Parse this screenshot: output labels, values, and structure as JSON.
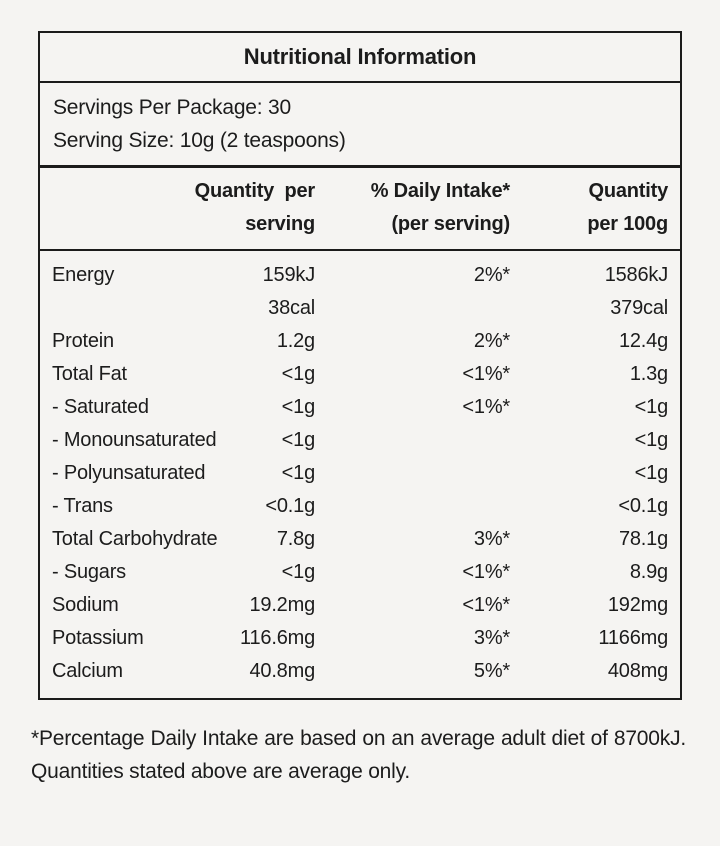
{
  "page": {
    "background_color": "#f5f4f2",
    "border_color": "#1b1b1b",
    "text_color": "#1c1c1c"
  },
  "table": {
    "title": "Nutritional Information",
    "servings": {
      "per_package": "Servings Per Package: 30",
      "serving_size": "Serving Size: 10g (2 teaspoons)"
    },
    "columns": {
      "qty_serving": "Quantity per\nserving",
      "daily_intake": "% Daily Intake*\n(per serving)",
      "qty_100g": "Quantity\nper 100g"
    },
    "rows": [
      {
        "label": "Energy",
        "qty_serving": "159kJ\n38cal",
        "daily_intake": "2%*",
        "qty_100g": "1586kJ\n379cal"
      },
      {
        "label": "Protein",
        "qty_serving": "1.2g",
        "daily_intake": "2%*",
        "qty_100g": "12.4g"
      },
      {
        "label": "Total Fat",
        "qty_serving": "<1g",
        "daily_intake": "<1%*",
        "qty_100g": "1.3g"
      },
      {
        "label": "- Saturated",
        "qty_serving": "<1g",
        "daily_intake": "<1%*",
        "qty_100g": "<1g"
      },
      {
        "label": "- Monounsaturated",
        "qty_serving": "<1g",
        "daily_intake": "",
        "qty_100g": "<1g"
      },
      {
        "label": "- Polyunsaturated",
        "qty_serving": "<1g",
        "daily_intake": "",
        "qty_100g": "<1g"
      },
      {
        "label": "- Trans",
        "qty_serving": "<0.1g",
        "daily_intake": "",
        "qty_100g": "<0.1g"
      },
      {
        "label": "Total Carbohydrate",
        "qty_serving": "7.8g",
        "daily_intake": "3%*",
        "qty_100g": "78.1g"
      },
      {
        "label": "- Sugars",
        "qty_serving": "<1g",
        "daily_intake": "<1%*",
        "qty_100g": "8.9g"
      },
      {
        "label": "Sodium",
        "qty_serving": "19.2mg",
        "daily_intake": "<1%*",
        "qty_100g": "192mg"
      },
      {
        "label": "Potassium",
        "qty_serving": "116.6mg",
        "daily_intake": "3%*",
        "qty_100g": "1166mg"
      },
      {
        "label": "Calcium",
        "qty_serving": "40.8mg",
        "daily_intake": "5%*",
        "qty_100g": "408mg"
      }
    ]
  },
  "footnote": "*Percentage Daily Intake are based on an average adult diet of 8700kJ. Quantities stated above are average only."
}
